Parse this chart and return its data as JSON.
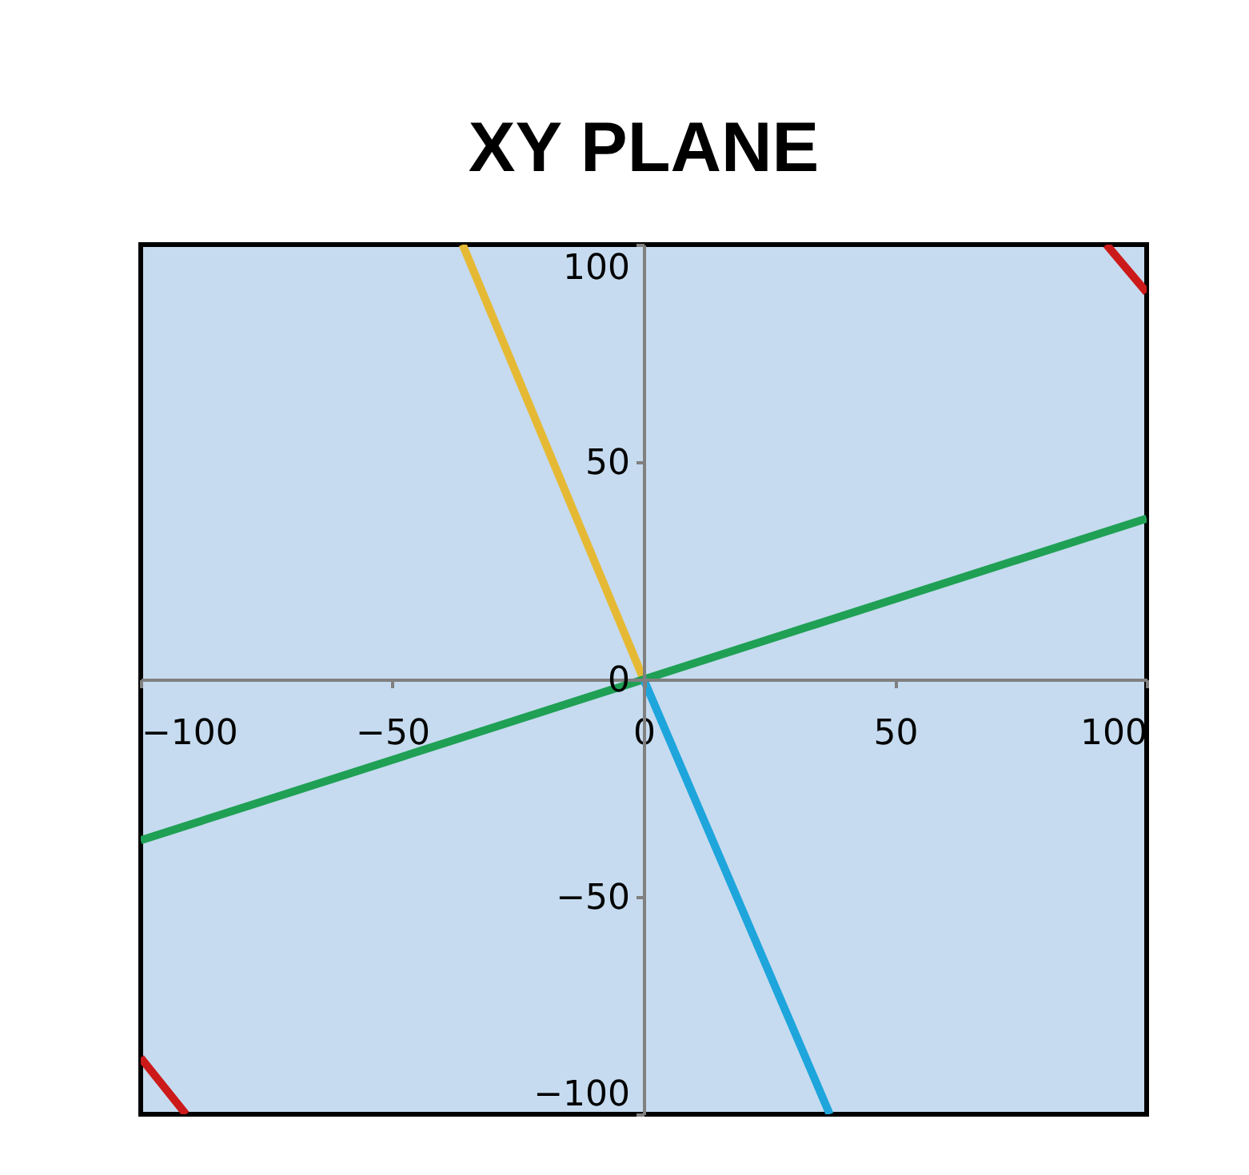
{
  "chart_data": {
    "type": "line",
    "title": "XY PLANE",
    "xlim": [
      -100,
      100
    ],
    "xticks": [
      -100,
      -50,
      0,
      50,
      100
    ],
    "ylim": [
      -100,
      100
    ],
    "yticks": [
      -100,
      -50,
      0,
      50,
      100
    ],
    "grid": false,
    "series": [
      {
        "color": "#e6b935",
        "x": [
          0,
          -36
        ],
        "values": [
          0,
          100
        ]
      },
      {
        "color": "#1fa055",
        "x": [
          -100,
          100
        ],
        "values": [
          -37,
          37
        ]
      },
      {
        "color": "#1ea5dc",
        "x": [
          0,
          37
        ],
        "values": [
          0,
          -100
        ]
      },
      {
        "color": "#cc1a1a",
        "x": [
          92,
          100
        ],
        "values": [
          100,
          89
        ]
      },
      {
        "color": "#cc1a1a",
        "x": [
          -100,
          -91
        ],
        "values": [
          -87,
          -100
        ]
      }
    ]
  }
}
